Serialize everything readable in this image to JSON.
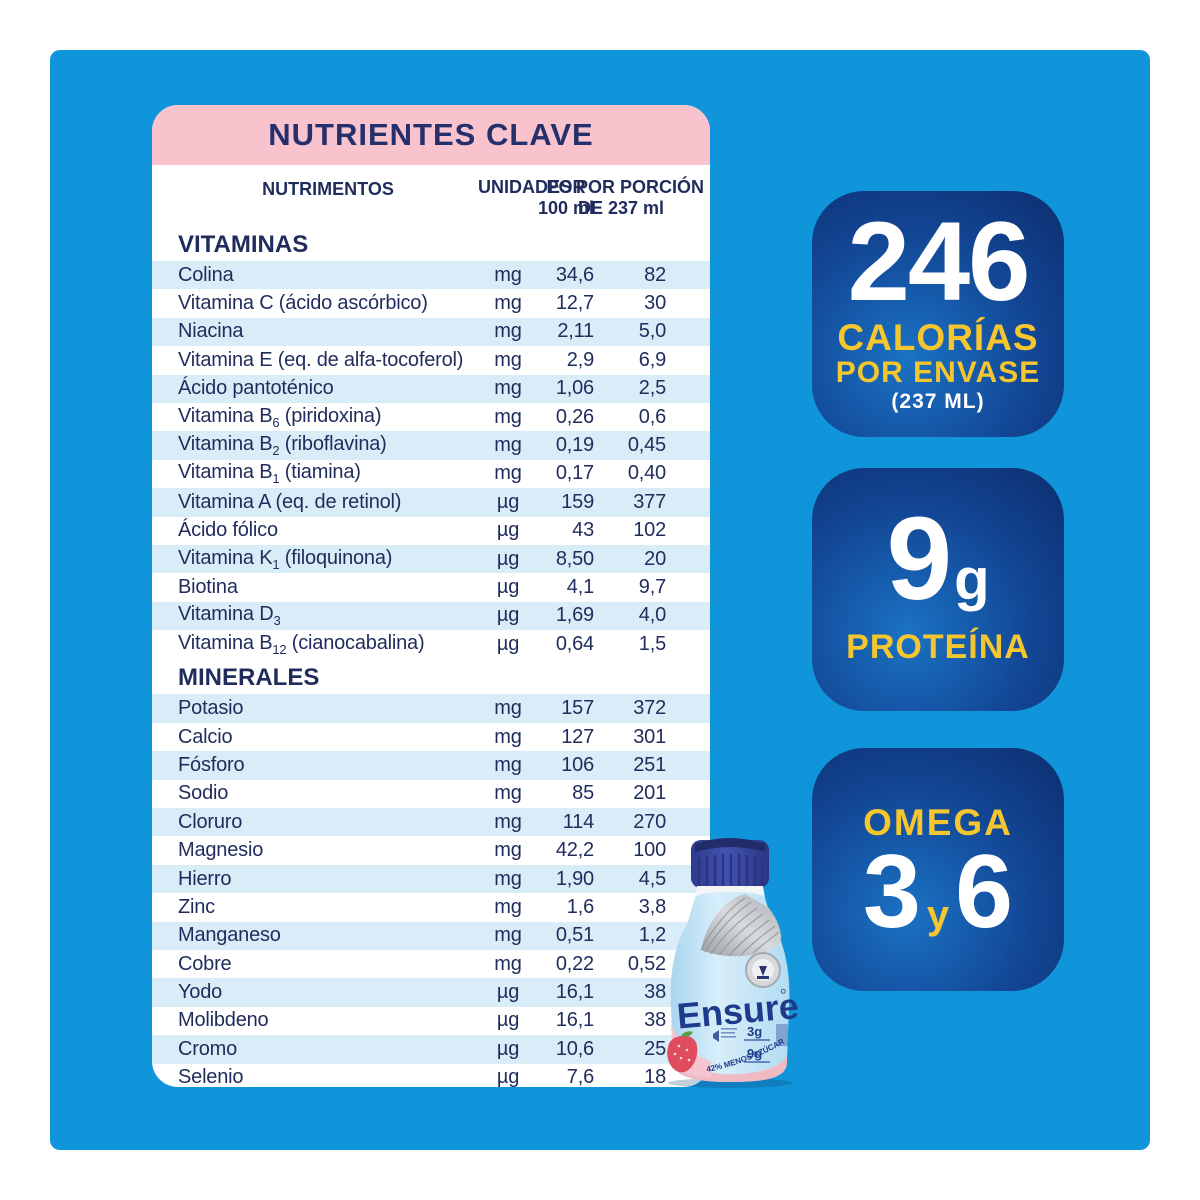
{
  "card": {
    "title": "NUTRIENTES CLAVE",
    "table": {
      "col_nutrients": "NUTRIMENTOS",
      "col_units": "UNIDADES",
      "col_per100_l1": "POR",
      "col_per100_l2": "100 ml",
      "col_serving_l1": "POR PORCIÓN",
      "col_serving_l2": "DE 237 ml",
      "sections": [
        {
          "title": "VITAMINAS",
          "rows": [
            {
              "pre": "Colina",
              "sub": "",
              "post": "",
              "unit": "mg",
              "per100": "34,6",
              "per237": "82"
            },
            {
              "pre": "Vitamina C (ácido ascórbico)",
              "sub": "",
              "post": "",
              "unit": "mg",
              "per100": "12,7",
              "per237": "30"
            },
            {
              "pre": "Niacina",
              "sub": "",
              "post": "",
              "unit": "mg",
              "per100": "2,11",
              "per237": "5,0"
            },
            {
              "pre": "Vitamina E (eq. de alfa-tocoferol)",
              "sub": "",
              "post": "",
              "unit": "mg",
              "per100": "2,9",
              "per237": "6,9"
            },
            {
              "pre": "Ácido pantoténico",
              "sub": "",
              "post": "",
              "unit": "mg",
              "per100": "1,06",
              "per237": "2,5"
            },
            {
              "pre": "Vitamina B",
              "sub": "6",
              "post": " (piridoxina)",
              "unit": "mg",
              "per100": "0,26",
              "per237": "0,6"
            },
            {
              "pre": "Vitamina B",
              "sub": "2",
              "post": " (riboflavina)",
              "unit": "mg",
              "per100": "0,19",
              "per237": "0,45"
            },
            {
              "pre": "Vitamina B",
              "sub": "1",
              "post": " (tiamina)",
              "unit": "mg",
              "per100": "0,17",
              "per237": "0,40"
            },
            {
              "pre": "Vitamina A (eq. de retinol)",
              "sub": "",
              "post": "",
              "unit": "µg",
              "per100": "159",
              "per237": "377"
            },
            {
              "pre": "Ácido fólico",
              "sub": "",
              "post": "",
              "unit": "µg",
              "per100": "43",
              "per237": "102"
            },
            {
              "pre": "Vitamina K",
              "sub": "1",
              "post": " (filoquinona)",
              "unit": "µg",
              "per100": "8,50",
              "per237": "20"
            },
            {
              "pre": "Biotina",
              "sub": "",
              "post": "",
              "unit": "µg",
              "per100": "4,1",
              "per237": "9,7"
            },
            {
              "pre": "Vitamina D",
              "sub": "3",
              "post": "",
              "unit": "µg",
              "per100": "1,69",
              "per237": "4,0"
            },
            {
              "pre": "Vitamina B",
              "sub": "12",
              "post": " (cianocabalina)",
              "unit": "µg",
              "per100": "0,64",
              "per237": "1,5"
            }
          ]
        },
        {
          "title": "MINERALES",
          "rows": [
            {
              "pre": "Potasio",
              "sub": "",
              "post": "",
              "unit": "mg",
              "per100": "157",
              "per237": "372"
            },
            {
              "pre": "Calcio",
              "sub": "",
              "post": "",
              "unit": "mg",
              "per100": "127",
              "per237": "301"
            },
            {
              "pre": "Fósforo",
              "sub": "",
              "post": "",
              "unit": "mg",
              "per100": "106",
              "per237": "251"
            },
            {
              "pre": "Sodio",
              "sub": "",
              "post": "",
              "unit": "mg",
              "per100": "85",
              "per237": "201"
            },
            {
              "pre": "Cloruro",
              "sub": "",
              "post": "",
              "unit": "mg",
              "per100": "114",
              "per237": "270"
            },
            {
              "pre": "Magnesio",
              "sub": "",
              "post": "",
              "unit": "mg",
              "per100": "42,2",
              "per237": "100"
            },
            {
              "pre": "Hierro",
              "sub": "",
              "post": "",
              "unit": "mg",
              "per100": "1,90",
              "per237": "4,5"
            },
            {
              "pre": "Zinc",
              "sub": "",
              "post": "",
              "unit": "mg",
              "per100": "1,6",
              "per237": "3,8"
            },
            {
              "pre": "Manganeso",
              "sub": "",
              "post": "",
              "unit": "mg",
              "per100": "0,51",
              "per237": "1,2"
            },
            {
              "pre": "Cobre",
              "sub": "",
              "post": "",
              "unit": "mg",
              "per100": "0,22",
              "per237": "0,52"
            },
            {
              "pre": "Yodo",
              "sub": "",
              "post": "",
              "unit": "µg",
              "per100": "16,1",
              "per237": "38"
            },
            {
              "pre": "Molibdeno",
              "sub": "",
              "post": "",
              "unit": "µg",
              "per100": "16,1",
              "per237": "38"
            },
            {
              "pre": "Cromo",
              "sub": "",
              "post": "",
              "unit": "µg",
              "per100": "10,6",
              "per237": "25"
            },
            {
              "pre": "Selenio",
              "sub": "",
              "post": "",
              "unit": "µg",
              "per100": "7,6",
              "per237": "18"
            }
          ]
        }
      ]
    }
  },
  "badges": {
    "calories": {
      "value": "246",
      "line1": "CALORÍAS",
      "line2": "POR ENVASE",
      "line3": "(237 ML)"
    },
    "protein": {
      "value": "9",
      "unit": "g",
      "label": "PROTEÍNA"
    },
    "omega": {
      "label": "OMEGA",
      "num1": "3",
      "conj": "y",
      "num2": "6"
    }
  },
  "bottle": {
    "brand": "Ensure",
    "callout_1": "3g",
    "callout_2": "9g",
    "curve_text": "42% MENOS AZÚCAR"
  },
  "colors": {
    "panel_blue": "#1095da",
    "header_pink": "#f9c3ce",
    "text_navy": "#1f2c5c",
    "stripe_blue": "#d9edf8",
    "badge_dark": "#0d2d6e",
    "badge_light": "#1b72c4",
    "accent_yellow": "#f5c62e"
  }
}
